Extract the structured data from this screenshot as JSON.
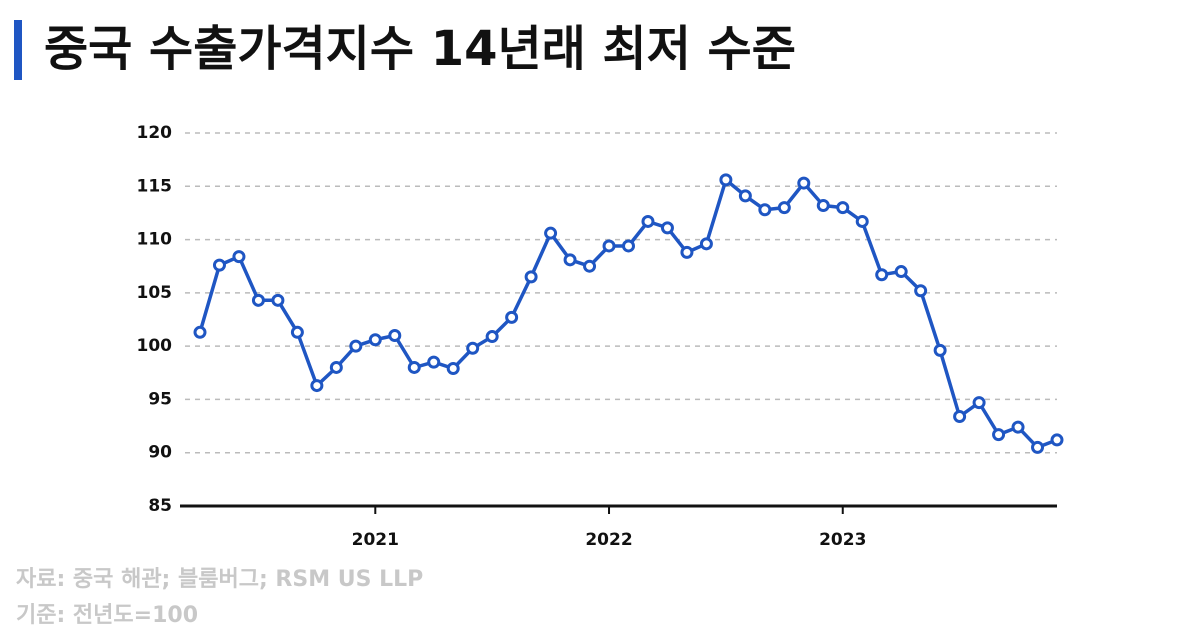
{
  "chart_data": {
    "type": "line",
    "title": "중국 수출가격지수 14년래 최저 수준",
    "source": "자료: 중국 해관; 블룸버그; RSM US LLP",
    "note": "기준: 전년도=100",
    "categories": [
      null,
      null,
      null,
      null,
      null,
      null,
      null,
      null,
      null,
      "2021",
      null,
      null,
      null,
      null,
      null,
      null,
      null,
      null,
      null,
      null,
      null,
      "2022",
      null,
      null,
      null,
      null,
      null,
      null,
      null,
      null,
      null,
      null,
      null,
      "2023",
      null,
      null,
      null,
      null,
      null,
      null,
      null,
      null,
      null,
      null,
      null
    ],
    "series": [
      {
        "name": "수출가격지수",
        "color": "#1f56c3",
        "values": [
          101.3,
          107.6,
          108.4,
          104.3,
          104.3,
          101.3,
          96.3,
          98.0,
          100.0,
          100.6,
          101.0,
          98.0,
          98.5,
          97.9,
          99.8,
          100.9,
          102.7,
          106.5,
          110.6,
          108.1,
          107.5,
          109.4,
          109.4,
          111.7,
          111.1,
          108.8,
          109.6,
          115.6,
          114.1,
          112.8,
          113.0,
          115.3,
          113.2,
          113.0,
          111.7,
          106.7,
          107.0,
          105.2,
          99.6,
          93.4,
          94.7,
          91.7,
          92.4,
          90.5,
          91.2
        ]
      }
    ],
    "ylim": [
      85,
      120
    ],
    "yticks": [
      85,
      90,
      95,
      100,
      105,
      110,
      115,
      120
    ],
    "grid": true
  }
}
